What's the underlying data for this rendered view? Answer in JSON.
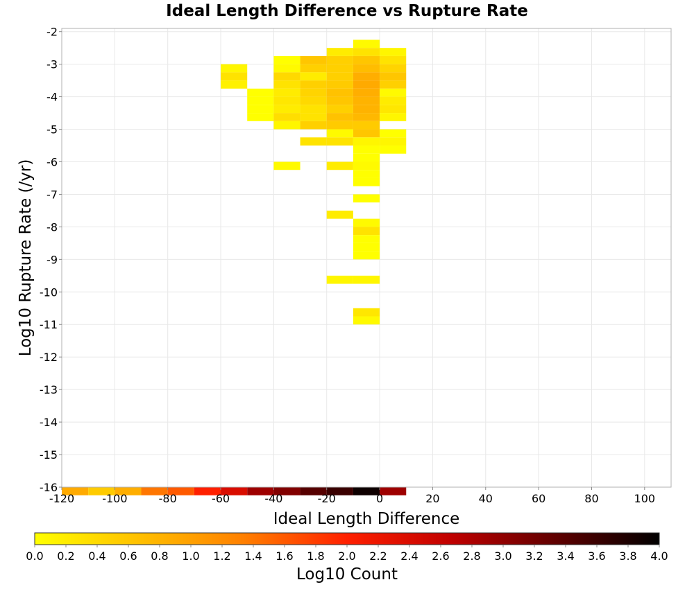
{
  "chart_data": {
    "type": "heatmap",
    "title": "Ideal Length Difference vs Rupture Rate",
    "xlabel": "Ideal Length Difference",
    "ylabel": "Log10 Rupture Rate (/yr)",
    "xlim": [
      -120,
      110
    ],
    "ylim": [
      -16,
      -1.9
    ],
    "x_ticks": [
      -120,
      -100,
      -80,
      -60,
      -40,
      -20,
      0,
      20,
      40,
      60,
      80,
      100
    ],
    "y_ticks": [
      -2,
      -3,
      -4,
      -5,
      -6,
      -7,
      -8,
      -9,
      -10,
      -11,
      -12,
      -13,
      -14,
      -15,
      -16
    ],
    "x_bin_width": 10,
    "y_bin_height": 0.25,
    "colorbar": {
      "label": "Log10 Count",
      "min": 0.0,
      "max": 4.0,
      "ticks": [
        "0.0",
        "0.2",
        "0.4",
        "0.6",
        "0.8",
        "1.0",
        "1.2",
        "1.4",
        "1.6",
        "1.8",
        "2.0",
        "2.2",
        "2.4",
        "2.6",
        "2.8",
        "3.0",
        "3.2",
        "3.4",
        "3.6",
        "3.8",
        "4.0"
      ],
      "colors": [
        "#ffff00",
        "#ffc000",
        "#ff8000",
        "#ff2000",
        "#c00000",
        "#600000",
        "#000000"
      ]
    },
    "grid": true,
    "cells": [
      {
        "x": -10,
        "y": -2.25,
        "v": 0.05
      },
      {
        "x": -20,
        "y": -2.5,
        "v": 0.2
      },
      {
        "x": -10,
        "y": -2.5,
        "v": 0.3
      },
      {
        "x": 0,
        "y": -2.5,
        "v": 0.1
      },
      {
        "x": -40,
        "y": -2.75,
        "v": 0.0
      },
      {
        "x": -30,
        "y": -2.75,
        "v": 0.6
      },
      {
        "x": -20,
        "y": -2.75,
        "v": 0.5
      },
      {
        "x": -10,
        "y": -2.75,
        "v": 0.6
      },
      {
        "x": 0,
        "y": -2.75,
        "v": 0.3
      },
      {
        "x": -60,
        "y": -3.0,
        "v": 0.1
      },
      {
        "x": -40,
        "y": -3.0,
        "v": 0.05
      },
      {
        "x": -30,
        "y": -3.0,
        "v": 0.5
      },
      {
        "x": -20,
        "y": -3.0,
        "v": 0.5
      },
      {
        "x": -10,
        "y": -3.0,
        "v": 0.7
      },
      {
        "x": 0,
        "y": -3.0,
        "v": 0.45
      },
      {
        "x": -60,
        "y": -3.25,
        "v": 0.3
      },
      {
        "x": -40,
        "y": -3.25,
        "v": 0.4
      },
      {
        "x": -30,
        "y": -3.25,
        "v": 0.2
      },
      {
        "x": -20,
        "y": -3.25,
        "v": 0.5
      },
      {
        "x": -10,
        "y": -3.25,
        "v": 0.85
      },
      {
        "x": 0,
        "y": -3.25,
        "v": 0.6
      },
      {
        "x": -60,
        "y": -3.5,
        "v": 0.15
      },
      {
        "x": -40,
        "y": -3.5,
        "v": 0.3
      },
      {
        "x": -30,
        "y": -3.5,
        "v": 0.5
      },
      {
        "x": -20,
        "y": -3.5,
        "v": 0.55
      },
      {
        "x": -10,
        "y": -3.5,
        "v": 0.9
      },
      {
        "x": 0,
        "y": -3.5,
        "v": 0.5
      },
      {
        "x": -50,
        "y": -3.75,
        "v": 0.0
      },
      {
        "x": -40,
        "y": -3.75,
        "v": 0.2
      },
      {
        "x": -30,
        "y": -3.75,
        "v": 0.45
      },
      {
        "x": -20,
        "y": -3.75,
        "v": 0.65
      },
      {
        "x": -10,
        "y": -3.75,
        "v": 0.85
      },
      {
        "x": 0,
        "y": -3.75,
        "v": 0.05
      },
      {
        "x": -50,
        "y": -4.0,
        "v": 0.0
      },
      {
        "x": -40,
        "y": -4.0,
        "v": 0.25
      },
      {
        "x": -30,
        "y": -4.0,
        "v": 0.4
      },
      {
        "x": -20,
        "y": -4.0,
        "v": 0.6
      },
      {
        "x": -10,
        "y": -4.0,
        "v": 0.8
      },
      {
        "x": 0,
        "y": -4.0,
        "v": 0.2
      },
      {
        "x": -50,
        "y": -4.25,
        "v": 0.0
      },
      {
        "x": -40,
        "y": -4.25,
        "v": 0.2
      },
      {
        "x": -30,
        "y": -4.25,
        "v": 0.3
      },
      {
        "x": -20,
        "y": -4.25,
        "v": 0.5
      },
      {
        "x": -10,
        "y": -4.25,
        "v": 0.8
      },
      {
        "x": 0,
        "y": -4.25,
        "v": 0.25
      },
      {
        "x": -50,
        "y": -4.5,
        "v": 0.0
      },
      {
        "x": -40,
        "y": -4.5,
        "v": 0.35
      },
      {
        "x": -30,
        "y": -4.5,
        "v": 0.3
      },
      {
        "x": -20,
        "y": -4.5,
        "v": 0.65
      },
      {
        "x": -10,
        "y": -4.5,
        "v": 0.75
      },
      {
        "x": 0,
        "y": -4.5,
        "v": 0.1
      },
      {
        "x": -40,
        "y": -4.75,
        "v": 0.1
      },
      {
        "x": -30,
        "y": -4.75,
        "v": 0.5
      },
      {
        "x": -20,
        "y": -4.75,
        "v": 0.55
      },
      {
        "x": -10,
        "y": -4.75,
        "v": 0.55
      },
      {
        "x": -20,
        "y": -5.0,
        "v": 0.05
      },
      {
        "x": -10,
        "y": -5.0,
        "v": 0.6
      },
      {
        "x": 0,
        "y": -5.0,
        "v": 0.0
      },
      {
        "x": -30,
        "y": -5.25,
        "v": 0.3
      },
      {
        "x": -20,
        "y": -5.25,
        "v": 0.3
      },
      {
        "x": -10,
        "y": -5.25,
        "v": 0.1
      },
      {
        "x": 0,
        "y": -5.25,
        "v": 0.1
      },
      {
        "x": -10,
        "y": -5.5,
        "v": 0.0
      },
      {
        "x": 0,
        "y": -5.5,
        "v": 0.0
      },
      {
        "x": -10,
        "y": -5.75,
        "v": 0.0
      },
      {
        "x": -40,
        "y": -6.0,
        "v": 0.05
      },
      {
        "x": -20,
        "y": -6.0,
        "v": 0.2
      },
      {
        "x": -10,
        "y": -6.0,
        "v": 0.05
      },
      {
        "x": -10,
        "y": -6.25,
        "v": 0.0
      },
      {
        "x": -10,
        "y": -6.5,
        "v": 0.0
      },
      {
        "x": -10,
        "y": -7.0,
        "v": 0.0
      },
      {
        "x": -20,
        "y": -7.5,
        "v": 0.2
      },
      {
        "x": -10,
        "y": -7.75,
        "v": 0.05
      },
      {
        "x": -10,
        "y": -8.0,
        "v": 0.3
      },
      {
        "x": -10,
        "y": -8.25,
        "v": 0.0
      },
      {
        "x": -10,
        "y": -8.5,
        "v": 0.0
      },
      {
        "x": -10,
        "y": -8.75,
        "v": 0.0
      },
      {
        "x": -20,
        "y": -9.5,
        "v": 0.1
      },
      {
        "x": -10,
        "y": -9.5,
        "v": 0.1
      },
      {
        "x": -10,
        "y": -10.5,
        "v": 0.25
      },
      {
        "x": -10,
        "y": -10.75,
        "v": 0.05
      },
      {
        "x": -120,
        "y": -16.0,
        "v": 0.9
      },
      {
        "x": -110,
        "y": -16.0,
        "v": 0.55
      },
      {
        "x": -100,
        "y": -16.0,
        "v": 0.85
      },
      {
        "x": -90,
        "y": -16.0,
        "v": 1.4
      },
      {
        "x": -80,
        "y": -16.0,
        "v": 1.6
      },
      {
        "x": -70,
        "y": -16.0,
        "v": 2.0
      },
      {
        "x": -60,
        "y": -16.0,
        "v": 2.4
      },
      {
        "x": -50,
        "y": -16.0,
        "v": 2.9
      },
      {
        "x": -40,
        "y": -16.0,
        "v": 3.1
      },
      {
        "x": -30,
        "y": -16.0,
        "v": 3.4
      },
      {
        "x": -20,
        "y": -16.0,
        "v": 3.6
      },
      {
        "x": -10,
        "y": -16.0,
        "v": 3.9
      },
      {
        "x": 0,
        "y": -16.0,
        "v": 2.9
      }
    ]
  }
}
